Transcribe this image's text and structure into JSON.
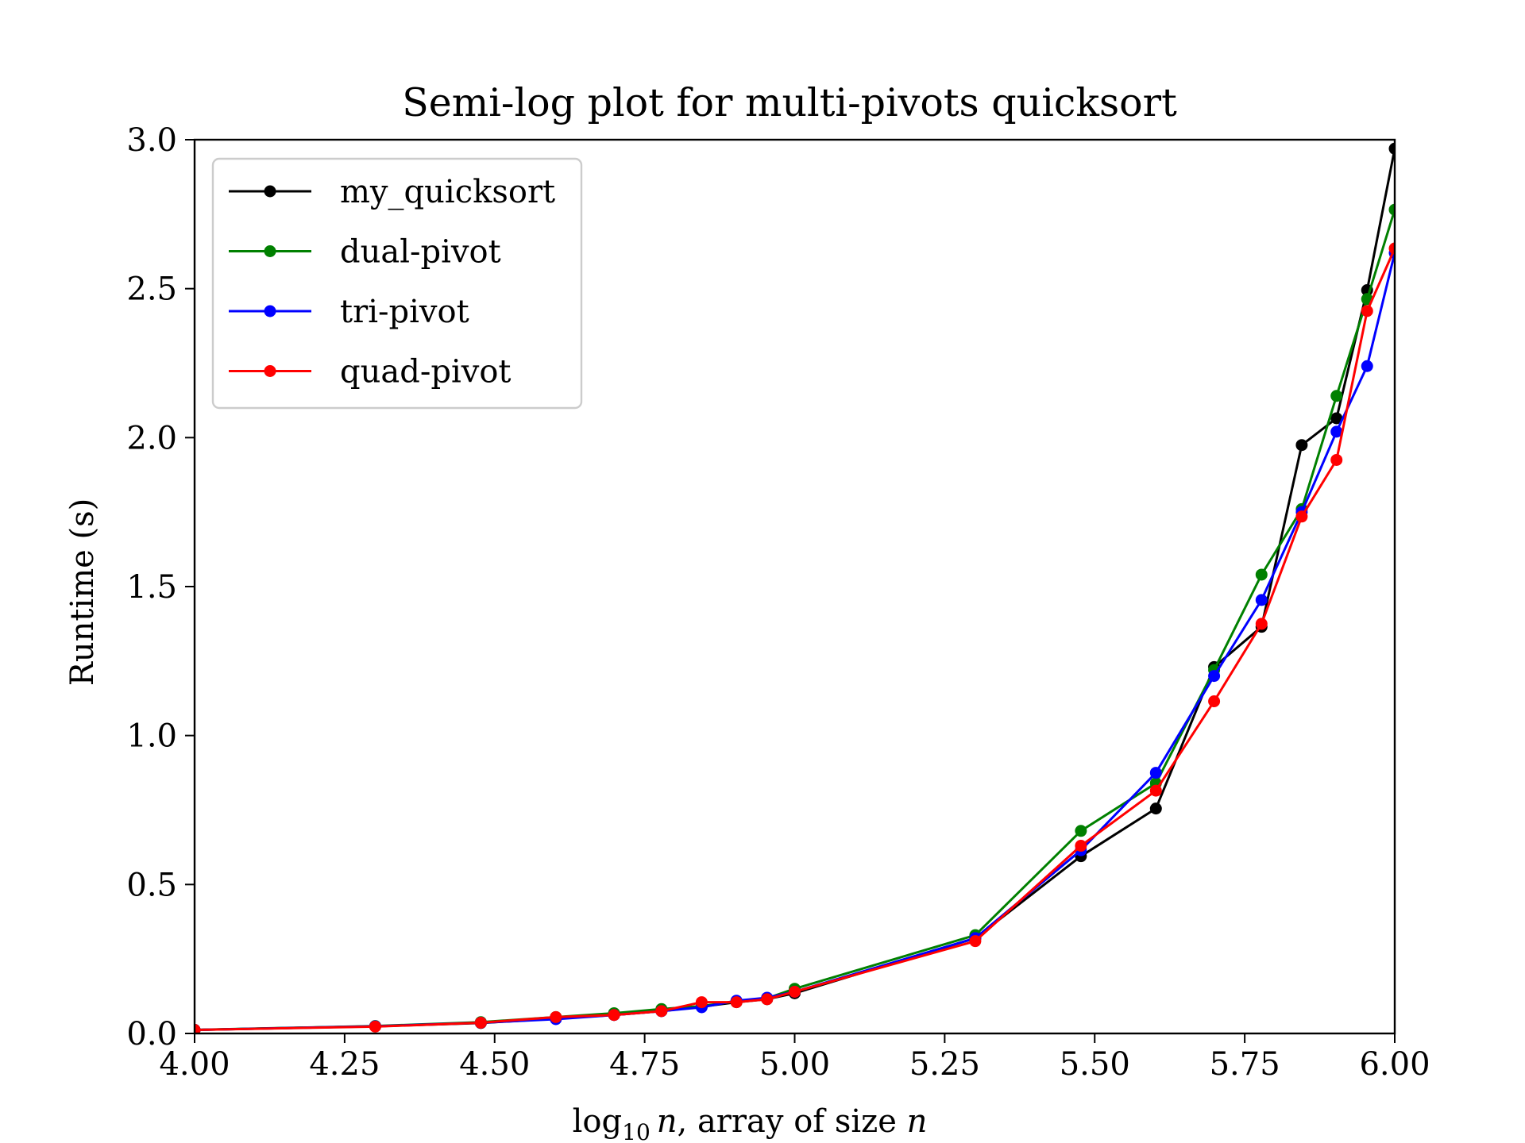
{
  "chart_data": {
    "type": "line",
    "title": "Semi-log plot for multi-pivots quicksort",
    "xlabel": {
      "prefix": "log",
      "subscript": "10",
      "variable": "n",
      "suffix": ", array of size ",
      "variable_end": "n"
    },
    "ylabel": "Runtime (s)",
    "xlim": [
      4.0,
      6.0
    ],
    "ylim": [
      0.0,
      3.0
    ],
    "xticks": [
      4.0,
      4.25,
      4.5,
      4.75,
      5.0,
      5.25,
      5.5,
      5.75,
      6.0
    ],
    "xtick_labels": [
      "4.00",
      "4.25",
      "4.50",
      "4.75",
      "5.00",
      "5.25",
      "5.50",
      "5.75",
      "6.00"
    ],
    "yticks": [
      0.0,
      0.5,
      1.0,
      1.5,
      2.0,
      2.5,
      3.0
    ],
    "ytick_labels": [
      "0.0",
      "0.5",
      "1.0",
      "1.5",
      "2.0",
      "2.5",
      "3.0"
    ],
    "grid": false,
    "legend_position": "top-left",
    "x": [
      4.0,
      4.301,
      4.477,
      4.602,
      4.699,
      4.778,
      4.845,
      4.903,
      4.954,
      5.0,
      5.301,
      5.477,
      5.602,
      5.699,
      5.778,
      5.845,
      5.903,
      5.954,
      6.0
    ],
    "series": [
      {
        "name": "my_quicksort",
        "color": "#000000",
        "values": [
          0.012,
          0.024,
          0.035,
          0.05,
          0.062,
          0.075,
          0.09,
          0.105,
          0.115,
          0.135,
          0.32,
          0.595,
          0.755,
          1.23,
          1.365,
          1.975,
          2.065,
          2.495,
          2.97
        ]
      },
      {
        "name": "dual-pivot",
        "color": "#008000",
        "values": [
          0.012,
          0.025,
          0.038,
          0.055,
          0.068,
          0.082,
          0.092,
          0.108,
          0.118,
          0.15,
          0.33,
          0.68,
          0.84,
          1.22,
          1.54,
          1.76,
          2.14,
          2.465,
          2.765
        ]
      },
      {
        "name": "tri-pivot",
        "color": "#0000ff",
        "values": [
          0.012,
          0.024,
          0.036,
          0.048,
          0.062,
          0.075,
          0.088,
          0.11,
          0.12,
          0.14,
          0.32,
          0.615,
          0.875,
          1.2,
          1.455,
          1.75,
          2.02,
          2.24,
          2.62
        ]
      },
      {
        "name": "quad-pivot",
        "color": "#ff0000",
        "values": [
          0.012,
          0.023,
          0.036,
          0.055,
          0.062,
          0.075,
          0.105,
          0.105,
          0.115,
          0.14,
          0.31,
          0.63,
          0.815,
          1.115,
          1.375,
          1.735,
          1.925,
          2.425,
          2.635
        ]
      }
    ]
  }
}
